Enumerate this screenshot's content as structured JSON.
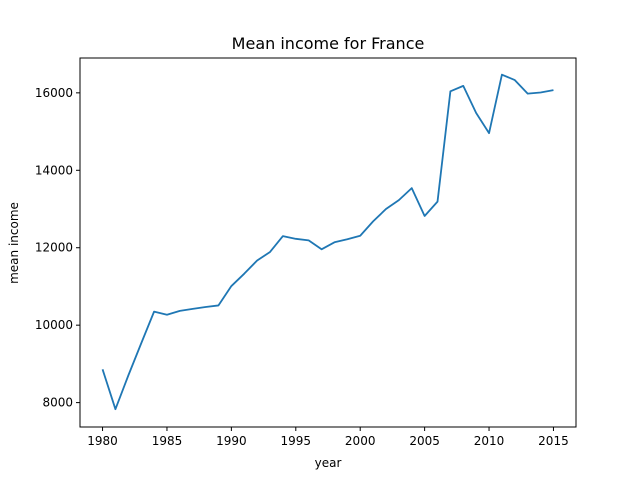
{
  "chart_data": {
    "type": "line",
    "title": "Mean income for France",
    "xlabel": "year",
    "ylabel": "mean income",
    "xlim": [
      1978.25,
      1976.75
    ],
    "ylim": [
      7370,
      16900
    ],
    "xticks": [
      1980,
      1985,
      1990,
      1995,
      2000,
      2005,
      2010,
      2015
    ],
    "yticks": [
      8000,
      10000,
      12000,
      14000,
      16000
    ],
    "grid": false,
    "line_color": "#1f77b4",
    "series": [
      {
        "x": [
          1980,
          1981,
          1982,
          1983,
          1984,
          1985,
          1986,
          1987,
          1988,
          1989,
          1990,
          1991,
          1992,
          1993,
          1994,
          1995,
          1996,
          1997,
          1998,
          1999,
          2000,
          2001,
          2002,
          2003,
          2004,
          2005,
          2006,
          2007,
          2008,
          2009,
          2010,
          2011,
          2012,
          2013,
          2014,
          2015
        ],
        "values": [
          8860,
          7830,
          8700,
          9530,
          10350,
          10270,
          10370,
          10420,
          10470,
          10510,
          11010,
          11330,
          11670,
          11890,
          12300,
          12230,
          12190,
          11960,
          12140,
          12220,
          12310,
          12680,
          13000,
          13230,
          13540,
          12820,
          13190,
          16040,
          16180,
          15480,
          14960,
          16470,
          16330,
          15980,
          16010,
          16070
        ]
      }
    ]
  }
}
